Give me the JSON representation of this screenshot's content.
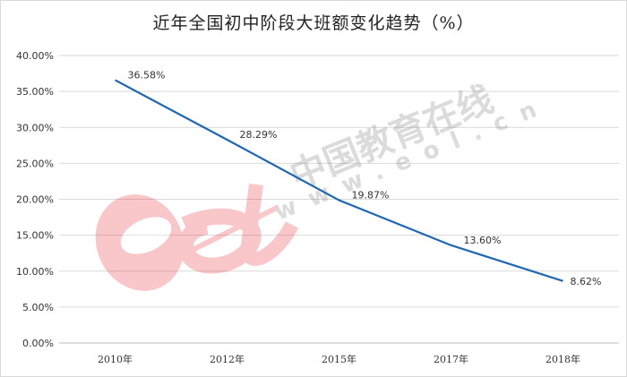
{
  "chart_data": {
    "type": "line",
    "title": "近年全国初中阶段大班额变化趋势（%）",
    "xlabel": "",
    "ylabel": "",
    "categories": [
      "2010年",
      "2012年",
      "2015年",
      "2017年",
      "2018年"
    ],
    "series": [
      {
        "values": [
          36.58,
          28.29,
          19.87,
          13.6,
          8.62
        ],
        "labels": [
          "36.58%",
          "28.29%",
          "19.87%",
          "13.60%",
          "8.62%"
        ],
        "color": "#1f66b3"
      }
    ],
    "ylim": [
      0,
      40
    ],
    "yticks": [
      0,
      5,
      10,
      15,
      20,
      25,
      30,
      35,
      40
    ],
    "ytick_labels": [
      "0.00%",
      "5.00%",
      "10.00%",
      "15.00%",
      "20.00%",
      "25.00%",
      "30.00%",
      "35.00%",
      "40.00%"
    ],
    "grid": true,
    "legend": "none"
  },
  "watermark": {
    "logo_text": "eol",
    "cn_text": "中国教育在线",
    "url_text": "www.eol.cn",
    "logo_color": "#e8383d",
    "text_color": "#8a8a8a"
  }
}
